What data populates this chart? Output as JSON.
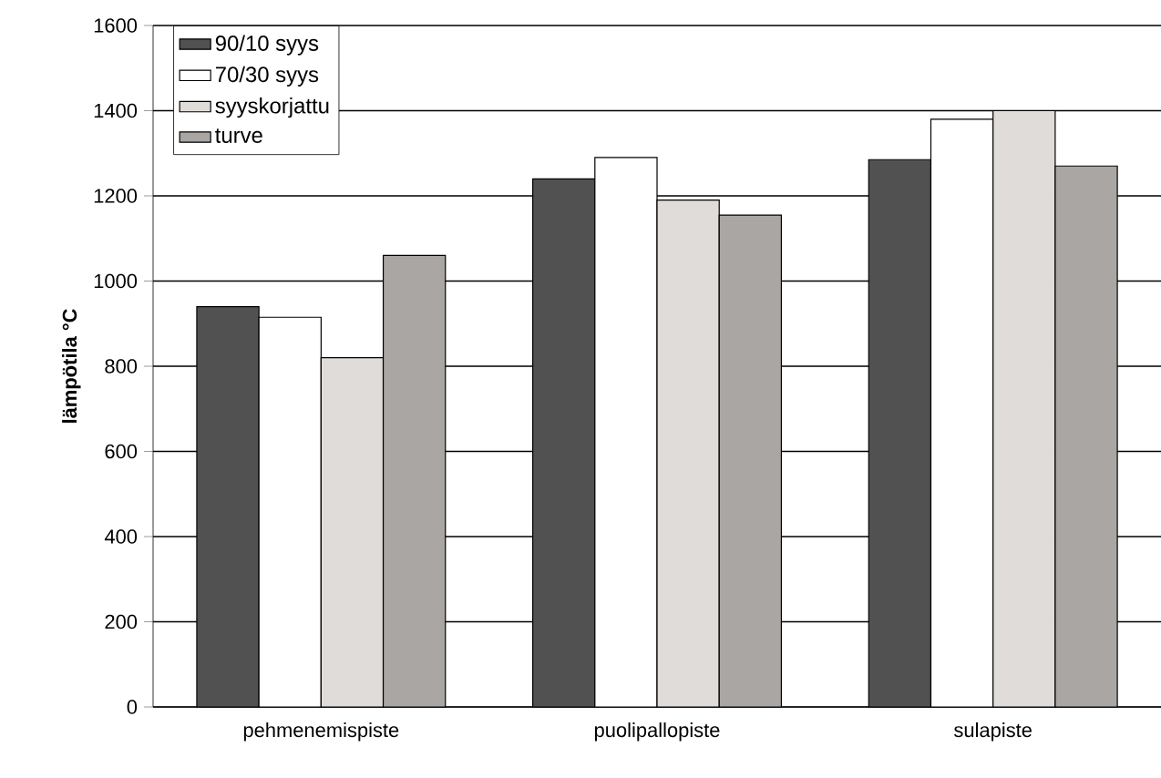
{
  "chart_data": {
    "type": "bar",
    "ylabel": "lämpötila °C",
    "categories": [
      "pehmenemispiste",
      "puolipallopiste",
      "sulapiste"
    ],
    "series": [
      {
        "name": "90/10 syys",
        "color": "#505150",
        "values": [
          940,
          1240,
          1285
        ]
      },
      {
        "name": "70/30 syys",
        "color": "#ffffff",
        "values": [
          915,
          1290,
          1380
        ]
      },
      {
        "name": "syyskorjattu",
        "color": "#e0dcd9",
        "values": [
          820,
          1190,
          1400
        ]
      },
      {
        "name": "turve",
        "color": "#a9a6a3",
        "values": [
          1060,
          1155,
          1270
        ]
      }
    ],
    "ylim": [
      0,
      1600
    ],
    "yticks": [
      0,
      200,
      400,
      600,
      800,
      1000,
      1200,
      1400,
      1600
    ],
    "grid": "y",
    "legend": "top left"
  }
}
